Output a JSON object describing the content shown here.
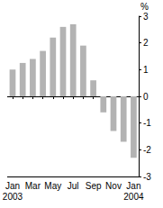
{
  "chart_data": {
    "type": "bar",
    "y_label": "%",
    "categories": [
      "Jan\n2003",
      null,
      "Mar",
      null,
      "May",
      null,
      "Jul",
      null,
      "Sep",
      null,
      "Nov",
      null,
      "Jan\n2004"
    ],
    "values": [
      1.0,
      1.25,
      1.4,
      1.7,
      2.2,
      2.6,
      2.7,
      1.9,
      0.6,
      -0.6,
      -1.3,
      -1.7,
      -2.3
    ],
    "color": "#b3b3b3",
    "ylim": [
      -3,
      3
    ],
    "yticks": [
      -3,
      -2,
      -1,
      0,
      1,
      2,
      3
    ],
    "grid": false
  }
}
